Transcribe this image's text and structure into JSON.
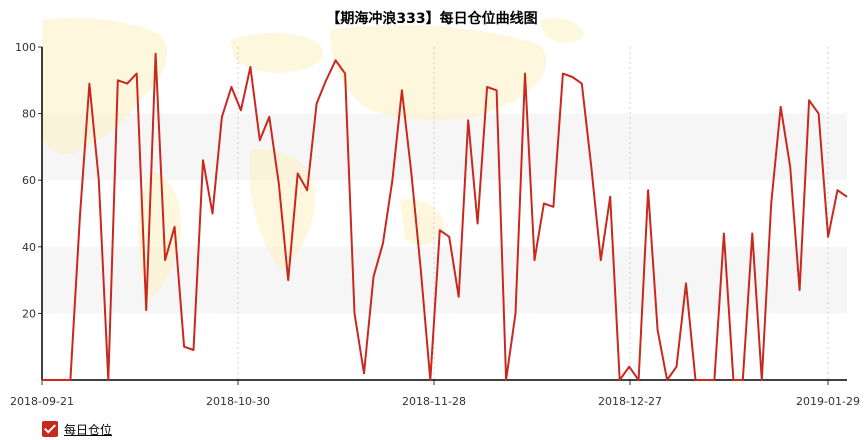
{
  "chart_data": {
    "type": "line",
    "title": "【期海冲浪333】每日仓位曲线图",
    "ylim": [
      0,
      100
    ],
    "yticks": [
      20,
      40,
      60,
      80,
      100
    ],
    "xtick_labels": [
      "2018-09-21",
      "2018-10-30",
      "2018-11-28",
      "2018-12-27",
      "2019-01-29"
    ],
    "legend": {
      "position": "bottom-left",
      "entries": [
        "每日仓位"
      ]
    },
    "colors": {
      "line": "#c9281f",
      "band": "#f6f6f6",
      "map": "#fdf1c2"
    },
    "series": [
      {
        "name": "每日仓位",
        "values": [
          0,
          0,
          0,
          0,
          49,
          89,
          60,
          0,
          90,
          89,
          92,
          21,
          98,
          36,
          46,
          10,
          9,
          66,
          50,
          79,
          88,
          81,
          94,
          72,
          79,
          59,
          30,
          62,
          57,
          83,
          90,
          96,
          92,
          20,
          2,
          31,
          41,
          60,
          87,
          62,
          33,
          0,
          45,
          43,
          25,
          78,
          47,
          88,
          87,
          0,
          20,
          92,
          36,
          53,
          52,
          92,
          91,
          89,
          64,
          36,
          55,
          0,
          4,
          0,
          57,
          15,
          0,
          4,
          29,
          0,
          0,
          0,
          44,
          0,
          0,
          44,
          0,
          53,
          82,
          64,
          27,
          84,
          80,
          43,
          57,
          55
        ]
      }
    ]
  }
}
